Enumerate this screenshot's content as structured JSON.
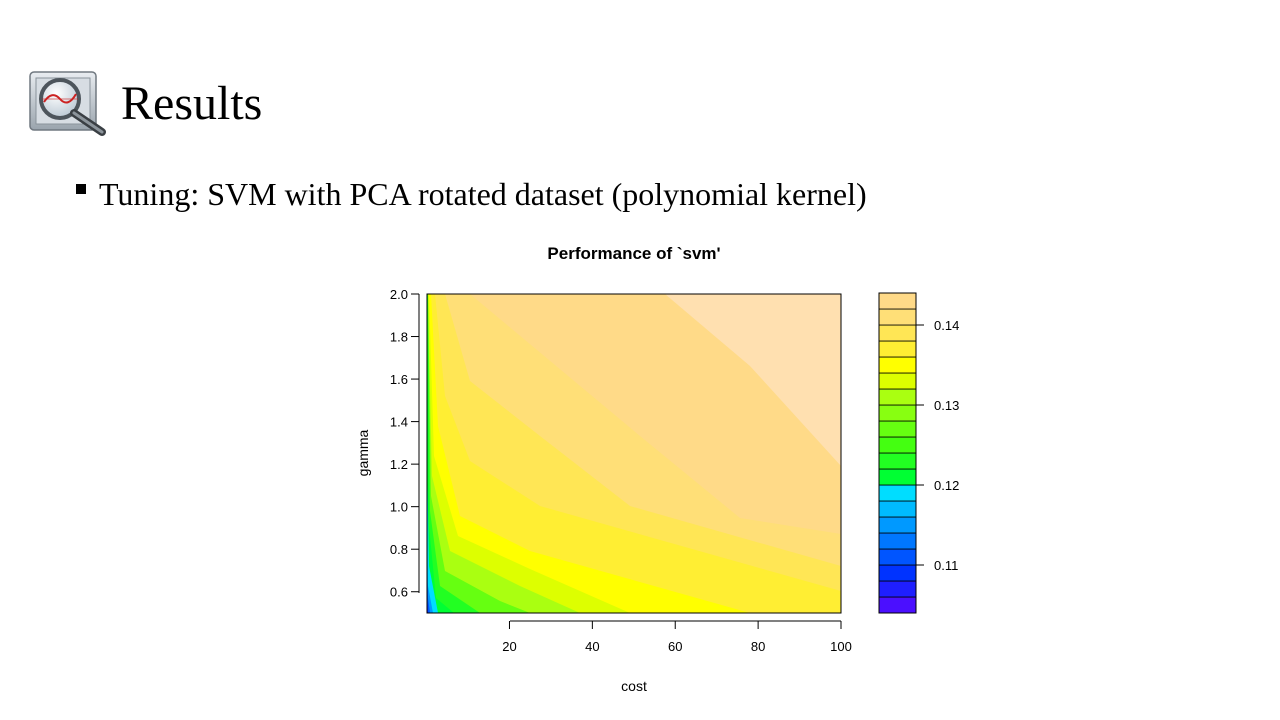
{
  "slide": {
    "title": "Results",
    "bullet": "Tuning: SVM with PCA rotated dataset (polynomial kernel)",
    "title_icon": "magnifier-chart-icon"
  },
  "chart_data": {
    "type": "contour",
    "title": "Performance of `svm'",
    "xlabel": "cost",
    "ylabel": "gamma",
    "xlim": [
      0.1,
      100
    ],
    "ylim": [
      0.5,
      2.0
    ],
    "x_ticks": [
      "20",
      "40",
      "60",
      "80",
      "100"
    ],
    "y_ticks": [
      "0.6",
      "0.8",
      "1.0",
      "1.2",
      "1.4",
      "1.6",
      "1.8",
      "2.0"
    ],
    "legend_position": "right",
    "legend_ticks": [
      "0.11",
      "0.12",
      "0.13",
      "0.14"
    ],
    "levels": [
      0.104,
      0.106,
      0.108,
      0.11,
      0.112,
      0.114,
      0.116,
      0.118,
      0.12,
      0.122,
      0.124,
      0.126,
      0.128,
      0.13,
      0.132,
      0.134,
      0.136,
      0.138,
      0.14,
      0.142,
      0.144
    ],
    "level_colors": [
      "#4B0FFF",
      "#1F1FFF",
      "#0033FF",
      "#0055FF",
      "#0077FF",
      "#0099FF",
      "#00BBFF",
      "#00DDFF",
      "#00FF33",
      "#22FF22",
      "#44FF11",
      "#66FF11",
      "#88FF11",
      "#AAFF11",
      "#DDFF00",
      "#FFFF00",
      "#FFEE33",
      "#FFE655",
      "#FFDF77",
      "#FFDA88",
      "#FFE0B0"
    ],
    "grid": false
  }
}
